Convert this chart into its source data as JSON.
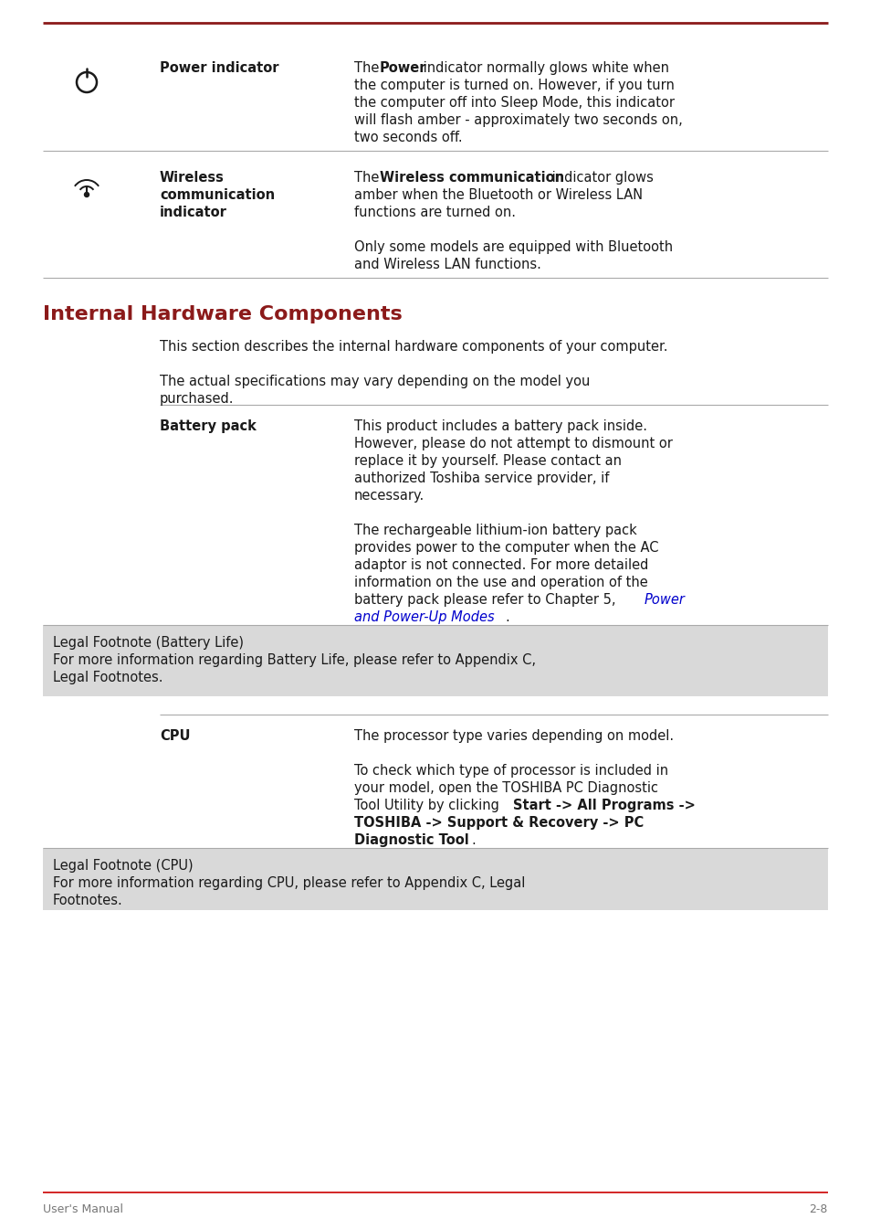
{
  "bg_color": "#ffffff",
  "top_rule_color": "#8B1A1A",
  "divider_color": "#aaaaaa",
  "red_title_color": "#8B1A1A",
  "blue_link_color": "#0000cc",
  "text_color": "#1a1a1a",
  "gray_bg_color": "#d9d9d9",
  "footer_text_color": "#777777",
  "footer_line_color": "#cc0000",
  "section_title": "Internal Hardware Components",
  "footer_left": "User's Manual",
  "footer_right": "2-8"
}
